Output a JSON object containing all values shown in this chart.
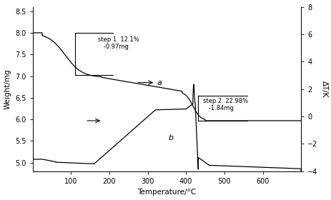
{
  "title": "",
  "xlabel": "Temperature/°C",
  "ylabel_left": "Weight/mg",
  "ylabel_right": "ΔT/K",
  "xlim": [
    0,
    700
  ],
  "ylim_left": [
    4.8,
    8.6
  ],
  "ylim_right": [
    -4,
    8
  ],
  "xticks": [
    100,
    200,
    300,
    400,
    500,
    600
  ],
  "yticks_left": [
    5.0,
    5.5,
    6.0,
    6.5,
    7.0,
    7.5,
    8.0,
    8.5
  ],
  "yticks_right": [
    -4,
    -2,
    0,
    2,
    4,
    6,
    8
  ],
  "step1_text": "step 1  12.1%\n   -0.97mg",
  "step2_text": "step 2  22.98%\n   -1.84mg",
  "label_a": "a",
  "label_b": "b",
  "line_color": "#000000",
  "background": "#ffffff"
}
